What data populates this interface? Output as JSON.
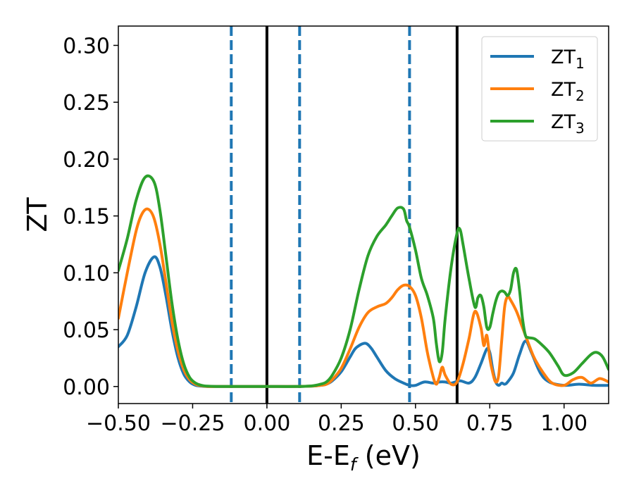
{
  "chart_data": {
    "type": "line",
    "xlabel": "E-E",
    "xlabel_sub": "f",
    "xlabel_unit": " (eV)",
    "ylabel": "ZT",
    "xlim": [
      -0.5,
      1.15
    ],
    "ylim": [
      -0.015,
      0.317
    ],
    "xticks": [
      -0.5,
      -0.25,
      0.0,
      0.25,
      0.5,
      0.75,
      1.0
    ],
    "xtick_labels": [
      "−0.50",
      "−0.25",
      "0.00",
      "0.25",
      "0.50",
      "0.75",
      "1.00"
    ],
    "yticks": [
      0.0,
      0.05,
      0.1,
      0.15,
      0.2,
      0.25,
      0.3
    ],
    "ytick_labels": [
      "0.00",
      "0.05",
      "0.10",
      "0.15",
      "0.20",
      "0.25",
      "0.30"
    ],
    "grid": false,
    "legend_position": "top-right",
    "vlines": [
      {
        "x": -0.12,
        "style": "dashed",
        "color": "#1f77b4"
      },
      {
        "x": 0.0,
        "style": "solid",
        "color": "#000000"
      },
      {
        "x": 0.11,
        "style": "dashed",
        "color": "#1f77b4"
      },
      {
        "x": 0.48,
        "style": "dashed",
        "color": "#1f77b4"
      },
      {
        "x": 0.64,
        "style": "solid",
        "color": "#000000"
      }
    ],
    "series": [
      {
        "name": "ZT",
        "subscript": "1",
        "color": "#1f77b4",
        "x": [
          -0.5,
          -0.47,
          -0.44,
          -0.41,
          -0.38,
          -0.36,
          -0.34,
          -0.32,
          -0.3,
          -0.28,
          -0.26,
          -0.24,
          -0.22,
          -0.2,
          -0.17,
          -0.14,
          -0.1,
          0.0,
          0.1,
          0.15,
          0.18,
          0.2,
          0.22,
          0.25,
          0.28,
          0.3,
          0.33,
          0.35,
          0.37,
          0.4,
          0.43,
          0.46,
          0.48,
          0.5,
          0.53,
          0.56,
          0.58,
          0.6,
          0.62,
          0.65,
          0.68,
          0.7,
          0.72,
          0.74,
          0.75,
          0.76,
          0.77,
          0.78,
          0.79,
          0.8,
          0.81,
          0.83,
          0.85,
          0.87,
          0.89,
          0.92,
          0.95,
          1.0,
          1.05,
          1.1,
          1.15
        ],
        "y": [
          0.035,
          0.045,
          0.07,
          0.1,
          0.114,
          0.105,
          0.08,
          0.05,
          0.026,
          0.011,
          0.004,
          0.001,
          0.0003,
          0.0,
          0.0,
          0.0,
          0.0,
          0.0,
          0.0,
          0.0003,
          0.001,
          0.002,
          0.005,
          0.013,
          0.026,
          0.034,
          0.038,
          0.034,
          0.026,
          0.014,
          0.007,
          0.003,
          0.001,
          0.001,
          0.004,
          0.003,
          0.004,
          0.004,
          0.003,
          0.005,
          0.003,
          0.008,
          0.02,
          0.033,
          0.03,
          0.015,
          0.004,
          0.001,
          0.003,
          0.002,
          0.004,
          0.012,
          0.028,
          0.04,
          0.03,
          0.012,
          0.004,
          0.001,
          0.002,
          0.001,
          0.001
        ]
      },
      {
        "name": "ZT",
        "subscript": "2",
        "color": "#ff7f0e",
        "x": [
          -0.5,
          -0.47,
          -0.44,
          -0.42,
          -0.4,
          -0.38,
          -0.36,
          -0.34,
          -0.32,
          -0.3,
          -0.28,
          -0.26,
          -0.24,
          -0.22,
          -0.2,
          -0.17,
          -0.14,
          -0.1,
          0.0,
          0.1,
          0.15,
          0.18,
          0.2,
          0.22,
          0.25,
          0.28,
          0.31,
          0.34,
          0.37,
          0.4,
          0.42,
          0.44,
          0.46,
          0.48,
          0.5,
          0.52,
          0.54,
          0.56,
          0.57,
          0.58,
          0.59,
          0.6,
          0.62,
          0.64,
          0.66,
          0.68,
          0.7,
          0.72,
          0.73,
          0.74,
          0.75,
          0.76,
          0.77,
          0.78,
          0.79,
          0.8,
          0.81,
          0.82,
          0.84,
          0.86,
          0.88,
          0.9,
          0.93,
          0.96,
          1.0,
          1.03,
          1.06,
          1.09,
          1.12,
          1.15
        ],
        "y": [
          0.06,
          0.1,
          0.137,
          0.152,
          0.156,
          0.148,
          0.125,
          0.092,
          0.058,
          0.032,
          0.015,
          0.006,
          0.002,
          0.0006,
          0.0,
          0.0,
          0.0,
          0.0,
          0.0,
          0.0,
          0.0003,
          0.001,
          0.002,
          0.006,
          0.016,
          0.033,
          0.052,
          0.065,
          0.07,
          0.073,
          0.078,
          0.085,
          0.089,
          0.088,
          0.08,
          0.06,
          0.03,
          0.008,
          0.002,
          0.008,
          0.017,
          0.01,
          0.002,
          0.004,
          0.02,
          0.042,
          0.066,
          0.052,
          0.036,
          0.045,
          0.025,
          0.012,
          0.004,
          0.01,
          0.04,
          0.07,
          0.079,
          0.076,
          0.066,
          0.052,
          0.038,
          0.025,
          0.012,
          0.003,
          0.001,
          0.006,
          0.008,
          0.003,
          0.007,
          0.004
        ]
      },
      {
        "name": "ZT",
        "subscript": "3",
        "color": "#2ca02c",
        "x": [
          -0.5,
          -0.47,
          -0.44,
          -0.41,
          -0.38,
          -0.36,
          -0.34,
          -0.32,
          -0.3,
          -0.28,
          -0.26,
          -0.24,
          -0.22,
          -0.2,
          -0.17,
          -0.14,
          -0.1,
          0.0,
          0.1,
          0.15,
          0.18,
          0.2,
          0.22,
          0.25,
          0.28,
          0.31,
          0.34,
          0.37,
          0.4,
          0.42,
          0.44,
          0.46,
          0.47,
          0.48,
          0.5,
          0.52,
          0.54,
          0.56,
          0.57,
          0.58,
          0.59,
          0.6,
          0.62,
          0.64,
          0.65,
          0.66,
          0.68,
          0.7,
          0.71,
          0.72,
          0.73,
          0.74,
          0.75,
          0.76,
          0.77,
          0.78,
          0.79,
          0.8,
          0.81,
          0.82,
          0.83,
          0.84,
          0.85,
          0.86,
          0.87,
          0.88,
          0.9,
          0.92,
          0.95,
          0.98,
          1.0,
          1.03,
          1.06,
          1.09,
          1.11,
          1.13,
          1.15
        ],
        "y": [
          0.102,
          0.13,
          0.164,
          0.184,
          0.18,
          0.155,
          0.115,
          0.074,
          0.042,
          0.02,
          0.008,
          0.003,
          0.001,
          0.0003,
          0.0,
          0.0,
          0.0,
          0.0,
          0.0,
          0.0005,
          0.002,
          0.004,
          0.01,
          0.025,
          0.05,
          0.085,
          0.115,
          0.132,
          0.142,
          0.15,
          0.157,
          0.156,
          0.146,
          0.14,
          0.12,
          0.095,
          0.08,
          0.06,
          0.038,
          0.022,
          0.03,
          0.06,
          0.105,
          0.135,
          0.138,
          0.125,
          0.095,
          0.07,
          0.078,
          0.08,
          0.07,
          0.052,
          0.052,
          0.064,
          0.075,
          0.082,
          0.084,
          0.083,
          0.08,
          0.085,
          0.1,
          0.103,
          0.085,
          0.06,
          0.045,
          0.043,
          0.042,
          0.038,
          0.03,
          0.018,
          0.01,
          0.012,
          0.02,
          0.028,
          0.03,
          0.026,
          0.015
        ]
      }
    ]
  }
}
